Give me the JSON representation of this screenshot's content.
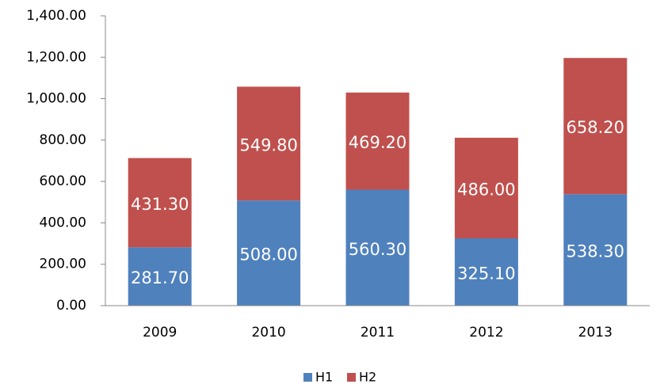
{
  "chart_data": {
    "type": "stacked-bar",
    "categories": [
      "2009",
      "2010",
      "2011",
      "2012",
      "2013"
    ],
    "series": [
      {
        "name": "H1",
        "color": "#4f81bd",
        "values": [
          281.7,
          508,
          560.3,
          325.1,
          538.3
        ],
        "value_labels": [
          "281.70",
          "508.00",
          "560.30",
          "325.10",
          "538.30"
        ]
      },
      {
        "name": "H2",
        "color": "#c0504d",
        "values": [
          431.3,
          549.8,
          469.2,
          486,
          658.2
        ],
        "value_labels": [
          "431.30",
          "549.80",
          "469.20",
          "486.00",
          "658.20"
        ]
      }
    ],
    "ylim": [
      0,
      1400
    ],
    "yticks": [
      {
        "value": 0,
        "label": "0.00"
      },
      {
        "value": 200,
        "label": "200.00"
      },
      {
        "value": 400,
        "label": "400.00"
      },
      {
        "value": 600,
        "label": "600.00"
      },
      {
        "value": 800,
        "label": "800.00"
      },
      {
        "value": 1000,
        "label": "1,000.00"
      },
      {
        "value": 1200,
        "label": "1,200.00"
      },
      {
        "value": 1400,
        "label": "1,400.00"
      }
    ],
    "legend": "bottom"
  }
}
